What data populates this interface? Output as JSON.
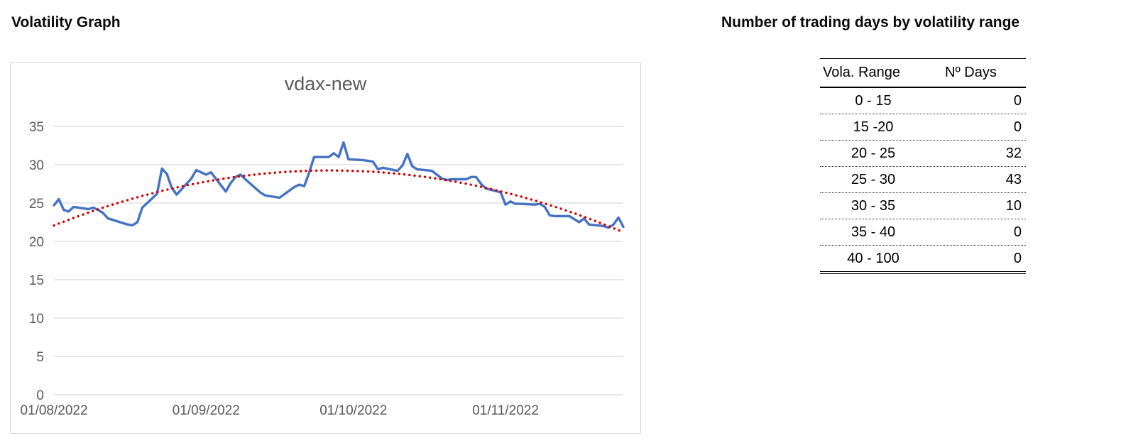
{
  "headings": {
    "left": "Volatility Graph",
    "right": "Number of trading days by volatility range"
  },
  "chart_data": {
    "type": "line",
    "title": "vdax-new",
    "legend": "none",
    "grid": true,
    "x_axis": {
      "start": "01/08/2022",
      "end": "25/11/2022",
      "tick_labels": [
        "01/08/2022",
        "01/09/2022",
        "01/10/2022",
        "01/11/2022"
      ]
    },
    "y_axis": {
      "min": 0,
      "max": 35,
      "step": 5,
      "tick_labels": [
        "0",
        "5",
        "10",
        "15",
        "20",
        "25",
        "30",
        "35"
      ]
    },
    "colors": {
      "series": "#4472C4",
      "trendline": "#D40000",
      "gridline": "#D9D9D9"
    },
    "series": [
      {
        "name": "vdax-new daily volatility",
        "style": "solid-line",
        "color": "#4472C4",
        "dates": [
          "01/08/2022",
          "02/08/2022",
          "03/08/2022",
          "04/08/2022",
          "05/08/2022",
          "08/08/2022",
          "09/08/2022",
          "10/08/2022",
          "11/08/2022",
          "12/08/2022",
          "15/08/2022",
          "16/08/2022",
          "17/08/2022",
          "18/08/2022",
          "19/08/2022",
          "22/08/2022",
          "23/08/2022",
          "24/08/2022",
          "25/08/2022",
          "26/08/2022",
          "29/08/2022",
          "30/08/2022",
          "31/08/2022",
          "01/09/2022",
          "02/09/2022",
          "05/09/2022",
          "06/09/2022",
          "07/09/2022",
          "08/09/2022",
          "09/09/2022",
          "12/09/2022",
          "13/09/2022",
          "14/09/2022",
          "15/09/2022",
          "16/09/2022",
          "19/09/2022",
          "20/09/2022",
          "21/09/2022",
          "22/09/2022",
          "23/09/2022",
          "26/09/2022",
          "27/09/2022",
          "28/09/2022",
          "29/09/2022",
          "30/09/2022",
          "03/10/2022",
          "04/10/2022",
          "05/10/2022",
          "06/10/2022",
          "07/10/2022",
          "10/10/2022",
          "11/10/2022",
          "12/10/2022",
          "13/10/2022",
          "14/10/2022",
          "17/10/2022",
          "18/10/2022",
          "19/10/2022",
          "20/10/2022",
          "21/10/2022",
          "24/10/2022",
          "25/10/2022",
          "26/10/2022",
          "27/10/2022",
          "28/10/2022",
          "31/10/2022",
          "01/11/2022",
          "02/11/2022",
          "03/11/2022",
          "04/11/2022",
          "07/11/2022",
          "08/11/2022",
          "09/11/2022",
          "10/11/2022",
          "11/11/2022",
          "14/11/2022",
          "15/11/2022",
          "16/11/2022",
          "17/11/2022",
          "18/11/2022",
          "21/11/2022",
          "22/11/2022",
          "23/11/2022",
          "24/11/2022",
          "25/11/2022"
        ],
        "values": [
          24.7,
          25.5,
          24.1,
          23.9,
          24.5,
          24.2,
          24.4,
          24.1,
          23.7,
          23.0,
          22.4,
          22.2,
          22.1,
          22.5,
          24.4,
          26.2,
          29.5,
          28.8,
          27.0,
          26.1,
          28.2,
          29.3,
          29.0,
          28.7,
          29.0,
          26.5,
          27.6,
          28.4,
          28.7,
          28.1,
          26.4,
          26.0,
          25.9,
          25.8,
          25.7,
          27.1,
          27.4,
          27.2,
          29.0,
          31.0,
          31.0,
          31.5,
          31.0,
          32.9,
          30.7,
          30.6,
          30.5,
          30.4,
          29.4,
          29.6,
          29.2,
          29.9,
          31.4,
          29.8,
          29.4,
          29.2,
          28.7,
          28.2,
          28.0,
          28.1,
          28.1,
          28.4,
          28.4,
          27.5,
          26.9,
          26.4,
          24.8,
          25.2,
          24.9,
          24.9,
          24.8,
          24.9,
          24.5,
          23.4,
          23.3,
          23.3,
          22.9,
          22.5,
          23.0,
          22.2,
          22.0,
          21.8,
          22.2,
          23.1,
          21.9
        ]
      },
      {
        "name": "polynomial trendline (order 2)",
        "style": "dotted",
        "color": "#D40000",
        "derived": "least-squares quadratic fit of the daily series"
      }
    ]
  },
  "table": {
    "columns": [
      "Vola. Range",
      "Nº Days"
    ],
    "rows": [
      {
        "range": "0 - 15",
        "days": "0"
      },
      {
        "range": "15 -20",
        "days": "0"
      },
      {
        "range": "20 - 25",
        "days": "32"
      },
      {
        "range": "25 - 30",
        "days": "43"
      },
      {
        "range": "30 - 35",
        "days": "10"
      },
      {
        "range": "35 - 40",
        "days": "0"
      },
      {
        "range": "40 - 100",
        "days": "0"
      }
    ]
  }
}
